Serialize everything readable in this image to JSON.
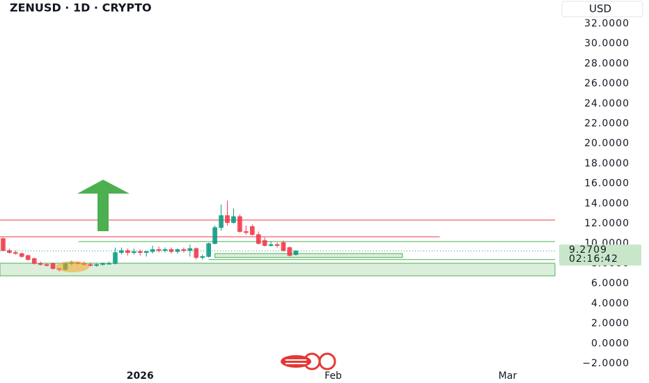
{
  "chart_data": {
    "type": "candlestick",
    "title": "ZENUSD · 1D · CRYPTO",
    "currency": "USD",
    "open": [
      10.5,
      9.3,
      9.1,
      9.0,
      8.8,
      8.5,
      8.0,
      7.9,
      8.0,
      7.5,
      7.4,
      8.0,
      8.1,
      8.0,
      7.9,
      7.8,
      7.9,
      8.0,
      8.0,
      9.1,
      9.3,
      9.1,
      9.2,
      9.1,
      9.2,
      9.4,
      9.3,
      9.4,
      9.2,
      9.4,
      9.3,
      9.5,
      8.6,
      8.7,
      10.0,
      11.6,
      12.8,
      12.1,
      12.7,
      11.2,
      11.7,
      10.9,
      10.3,
      9.8,
      9.9,
      10.1,
      9.6,
      8.9
    ],
    "high": [
      10.6,
      9.5,
      9.3,
      9.1,
      8.9,
      8.6,
      8.2,
      8.0,
      8.1,
      7.6,
      8.1,
      8.3,
      8.2,
      8.2,
      8.1,
      8.0,
      8.1,
      8.2,
      9.6,
      9.6,
      9.5,
      9.5,
      9.4,
      9.3,
      9.8,
      9.7,
      9.6,
      9.6,
      9.5,
      9.6,
      9.9,
      9.6,
      8.9,
      10.1,
      11.8,
      13.9,
      14.3,
      13.5,
      12.9,
      11.8,
      11.9,
      11.2,
      10.6,
      10.2,
      10.1,
      10.3,
      9.7,
      9.3
    ],
    "low": [
      9.2,
      9.0,
      8.9,
      8.6,
      8.3,
      7.9,
      7.8,
      7.7,
      7.4,
      7.2,
      7.3,
      7.8,
      7.9,
      7.8,
      7.7,
      7.7,
      7.8,
      7.9,
      7.9,
      8.9,
      8.8,
      8.9,
      8.8,
      8.7,
      9.0,
      9.1,
      9.1,
      9.0,
      9.0,
      9.1,
      8.7,
      8.4,
      8.4,
      8.6,
      9.9,
      11.3,
      11.8,
      12.0,
      11.1,
      10.9,
      10.8,
      9.9,
      9.7,
      9.7,
      9.6,
      9.2,
      8.7,
      8.8
    ],
    "close": [
      9.3,
      9.1,
      9.0,
      8.7,
      8.4,
      8.0,
      7.9,
      7.8,
      7.5,
      7.4,
      8.0,
      8.1,
      8.0,
      7.9,
      7.8,
      7.9,
      8.0,
      8.0,
      9.1,
      9.3,
      9.1,
      9.2,
      9.1,
      9.2,
      9.4,
      9.3,
      9.4,
      9.2,
      9.4,
      9.3,
      9.5,
      8.6,
      8.7,
      10.0,
      11.6,
      12.8,
      12.1,
      12.7,
      11.2,
      11.1,
      10.9,
      10.0,
      9.8,
      9.9,
      9.8,
      9.3,
      8.8,
      9.2709
    ],
    "up_color": "#089981",
    "down_color": "#f23645",
    "xlim": [
      -0.5,
      88.6
    ],
    "xticks": [
      {
        "value": 22,
        "label": "2026"
      },
      {
        "value": 53,
        "label": "Feb"
      },
      {
        "value": 81,
        "label": "Mar"
      }
    ],
    "ylim": [
      -2.56,
      34.37
    ],
    "yticks": [
      {
        "value": 32,
        "label": "32.0000"
      },
      {
        "value": 30,
        "label": "30.0000"
      },
      {
        "value": 28,
        "label": "28.0000"
      },
      {
        "value": 26,
        "label": "26.0000"
      },
      {
        "value": 24,
        "label": "24.0000"
      },
      {
        "value": 22,
        "label": "22.0000"
      },
      {
        "value": 20,
        "label": "20.0000"
      },
      {
        "value": 18,
        "label": "18.0000"
      },
      {
        "value": 16,
        "label": "16.0000"
      },
      {
        "value": 14,
        "label": "14.0000"
      },
      {
        "value": 12,
        "label": "12.0000"
      },
      {
        "value": 10,
        "label": "10.0000"
      },
      {
        "value": 8,
        "label": "8.0000"
      },
      {
        "value": 6,
        "label": "6.0000"
      },
      {
        "value": 4,
        "label": "4.0000"
      },
      {
        "value": 2,
        "label": "2.0000"
      },
      {
        "value": 0,
        "label": "0.0000"
      },
      {
        "value": -2,
        "label": "−2.0000"
      }
    ],
    "last_price": 9.2709,
    "countdown": "02:16:42",
    "levels": [
      {
        "value": 12.35,
        "from": -0.5,
        "to": 88.6,
        "color": "#f23645"
      },
      {
        "value": 10.68,
        "from": -0.5,
        "to": 70.1,
        "color": "#f23645"
      },
      {
        "value": 10.2,
        "from": 12.1,
        "to": 88.6,
        "color": "#4caf50"
      },
      {
        "value": 8.4,
        "from": 33,
        "to": 88.6,
        "color": "#4caf50"
      }
    ],
    "zones": [
      {
        "top": 8.03,
        "bottom": 6.77,
        "from": -0.5,
        "to": 88.6,
        "color": "#4caf50"
      },
      {
        "top": 9.0,
        "bottom": 8.6,
        "from": 34,
        "to": 64.1,
        "color": "#4caf50"
      }
    ]
  }
}
